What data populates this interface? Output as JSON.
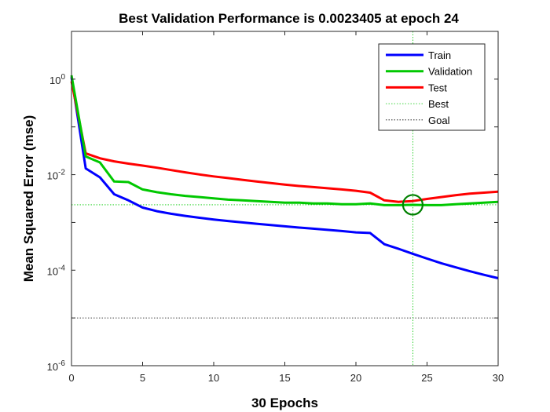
{
  "chart_data": {
    "type": "line",
    "title": "Best Validation Performance is 0.0023405 at epoch 24",
    "xlabel": "30 Epochs",
    "ylabel": "Mean Squared Error  (mse)",
    "xlim": [
      0,
      30
    ],
    "ylim": [
      1e-06,
      10
    ],
    "yscale": "log",
    "xticks": [
      0,
      5,
      10,
      15,
      20,
      25,
      30
    ],
    "yticks": [
      {
        "base": "10",
        "exp": "-6",
        "value": 1e-06
      },
      {
        "base": "10",
        "exp": "-4",
        "value": 0.0001
      },
      {
        "base": "10",
        "exp": "-2",
        "value": 0.01
      },
      {
        "base": "10",
        "exp": "0",
        "value": 1
      }
    ],
    "grid": false,
    "legend_position": "top-right",
    "x": [
      0,
      1,
      2,
      3,
      4,
      5,
      6,
      7,
      8,
      9,
      10,
      11,
      12,
      13,
      14,
      15,
      16,
      17,
      18,
      19,
      20,
      21,
      22,
      23,
      24,
      25,
      26,
      27,
      28,
      29,
      30
    ],
    "series": [
      {
        "name": "Train",
        "color": "#0000ff",
        "style": "solid",
        "values": [
          1.1,
          0.0135,
          0.0088,
          0.0039,
          0.0029,
          0.00205,
          0.00172,
          0.00152,
          0.00137,
          0.00125,
          0.00115,
          0.00107,
          0.001,
          0.00094,
          0.00088,
          0.00083,
          0.00078,
          0.00074,
          0.0007,
          0.00066,
          0.00062,
          0.0006,
          0.00035,
          0.00028,
          0.00022,
          0.000175,
          0.00014,
          0.000115,
          9.5e-05,
          8e-05,
          6.8e-05
        ]
      },
      {
        "name": "Validation",
        "color": "#00c800",
        "style": "solid",
        "values": [
          1.2,
          0.024,
          0.018,
          0.0072,
          0.007,
          0.0049,
          0.0043,
          0.0039,
          0.0036,
          0.0034,
          0.0032,
          0.003,
          0.0029,
          0.0028,
          0.0027,
          0.0026,
          0.0026,
          0.0025,
          0.0025,
          0.0024,
          0.0024,
          0.0025,
          0.0023,
          0.0023,
          0.0023405,
          0.0023,
          0.0023,
          0.0024,
          0.0025,
          0.0026,
          0.0027
        ]
      },
      {
        "name": "Test",
        "color": "#ff0000",
        "style": "solid",
        "values": [
          0.9,
          0.028,
          0.022,
          0.019,
          0.017,
          0.0155,
          0.014,
          0.0125,
          0.0112,
          0.0101,
          0.0092,
          0.0085,
          0.0078,
          0.0072,
          0.0067,
          0.0062,
          0.0058,
          0.0055,
          0.0052,
          0.0049,
          0.0046,
          0.0042,
          0.0029,
          0.0027,
          0.0028,
          0.0031,
          0.0034,
          0.0037,
          0.004,
          0.0042,
          0.0044
        ]
      },
      {
        "name": "Best",
        "color": "#00c800",
        "style": "dotted"
      },
      {
        "name": "Goal",
        "color": "#000000",
        "style": "dotted"
      }
    ],
    "best": {
      "epoch": 24,
      "value": 0.0023405
    },
    "goal": 1e-05
  }
}
